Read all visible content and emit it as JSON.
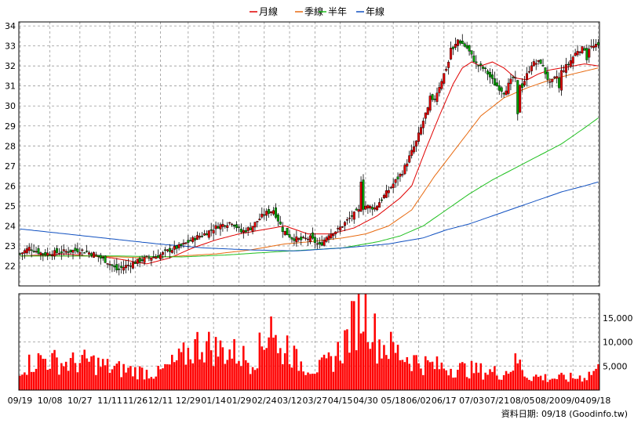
{
  "legend": {
    "ma20": {
      "label": "月線",
      "color": "#e00000"
    },
    "ma60": {
      "label": "季線",
      "color": "#e86a10"
    },
    "ma120": {
      "label": "半年",
      "color": "#20c020"
    },
    "ma240": {
      "label": "年線",
      "color": "#1050c0"
    }
  },
  "footer": "資料日期: 09/18 (Goodinfo.tw)",
  "colors": {
    "up": "#e00000",
    "down": "#00a000",
    "volume": "#ff0000",
    "grid": "#999999"
  },
  "chart_data": {
    "type": "candlestick-volume",
    "price_axis": {
      "min": 21,
      "max": 34.2,
      "ticks": [
        22,
        23,
        24,
        25,
        26,
        27,
        28,
        29,
        30,
        31,
        32,
        33,
        34
      ]
    },
    "volume_axis": {
      "min": 0,
      "max": 20000,
      "ticks": [
        {
          "v": 5000,
          "label": "5,000"
        },
        {
          "v": 10000,
          "label": "10,000"
        },
        {
          "v": 15000,
          "label": "15,000"
        }
      ]
    },
    "x_ticks": [
      {
        "i": 0,
        "label": "09/19"
      },
      {
        "i": 13,
        "label": "10/08"
      },
      {
        "i": 26,
        "label": "10/27"
      },
      {
        "i": 39,
        "label": "11/11"
      },
      {
        "i": 50,
        "label": "11/26"
      },
      {
        "i": 61,
        "label": "12/11"
      },
      {
        "i": 73,
        "label": "12/29"
      },
      {
        "i": 84,
        "label": "01/14"
      },
      {
        "i": 95,
        "label": "01/29"
      },
      {
        "i": 106,
        "label": "02/24"
      },
      {
        "i": 117,
        "label": "03/12"
      },
      {
        "i": 128,
        "label": "03/27"
      },
      {
        "i": 139,
        "label": "04/15"
      },
      {
        "i": 150,
        "label": "04/30"
      },
      {
        "i": 162,
        "label": "05/18"
      },
      {
        "i": 173,
        "label": "06/02"
      },
      {
        "i": 184,
        "label": "06/17"
      },
      {
        "i": 196,
        "label": "07/03"
      },
      {
        "i": 207,
        "label": "07/21"
      },
      {
        "i": 218,
        "label": "08/05"
      },
      {
        "i": 229,
        "label": "08/20"
      },
      {
        "i": 240,
        "label": "09/04"
      },
      {
        "i": 251,
        "label": "09/18"
      }
    ],
    "n": 252,
    "close_keypoints": [
      [
        0,
        22.6
      ],
      [
        4,
        22.9
      ],
      [
        10,
        22.6
      ],
      [
        18,
        22.7
      ],
      [
        26,
        22.8
      ],
      [
        32,
        22.6
      ],
      [
        38,
        22.2
      ],
      [
        42,
        21.8
      ],
      [
        48,
        22.1
      ],
      [
        55,
        22.4
      ],
      [
        60,
        22.5
      ],
      [
        65,
        22.8
      ],
      [
        70,
        23.0
      ],
      [
        76,
        23.4
      ],
      [
        80,
        23.6
      ],
      [
        86,
        24.0
      ],
      [
        92,
        24.2
      ],
      [
        96,
        23.7
      ],
      [
        100,
        23.9
      ],
      [
        106,
        24.6
      ],
      [
        110,
        24.8
      ],
      [
        114,
        23.8
      ],
      [
        118,
        23.4
      ],
      [
        122,
        23.3
      ],
      [
        126,
        23.4
      ],
      [
        130,
        23.0
      ],
      [
        134,
        23.6
      ],
      [
        138,
        23.8
      ],
      [
        144,
        24.5
      ],
      [
        150,
        25.0
      ],
      [
        154,
        24.9
      ],
      [
        160,
        25.8
      ],
      [
        166,
        26.7
      ],
      [
        172,
        28.2
      ],
      [
        176,
        29.6
      ],
      [
        180,
        30.4
      ],
      [
        184,
        31.6
      ],
      [
        188,
        32.8
      ],
      [
        190,
        33.3
      ],
      [
        194,
        32.9
      ],
      [
        198,
        32.1
      ],
      [
        202,
        31.8
      ],
      [
        206,
        31.1
      ],
      [
        210,
        30.7
      ],
      [
        214,
        31.4
      ],
      [
        218,
        31.0
      ],
      [
        222,
        32.1
      ],
      [
        226,
        32.2
      ],
      [
        230,
        31.1
      ],
      [
        234,
        31.6
      ],
      [
        238,
        32.1
      ],
      [
        242,
        32.8
      ],
      [
        246,
        32.9
      ],
      [
        251,
        33.0
      ]
    ],
    "dips": [
      [
        148,
        26.2
      ],
      [
        178,
        30.5
      ],
      [
        187,
        32.9
      ],
      [
        216,
        29.6
      ],
      [
        234,
        30.9
      ],
      [
        246,
        32.3
      ]
    ],
    "ma_keypoints": {
      "ma20": [
        [
          0,
          22.5
        ],
        [
          20,
          22.6
        ],
        [
          40,
          22.4
        ],
        [
          55,
          22.1
        ],
        [
          65,
          22.4
        ],
        [
          75,
          22.9
        ],
        [
          85,
          23.3
        ],
        [
          95,
          23.6
        ],
        [
          105,
          23.8
        ],
        [
          115,
          24.0
        ],
        [
          125,
          23.6
        ],
        [
          135,
          23.6
        ],
        [
          145,
          23.9
        ],
        [
          155,
          24.5
        ],
        [
          165,
          25.4
        ],
        [
          170,
          26.0
        ],
        [
          176,
          27.8
        ],
        [
          182,
          29.5
        ],
        [
          188,
          31.1
        ],
        [
          192,
          31.9
        ],
        [
          196,
          32.2
        ],
        [
          200,
          32.0
        ],
        [
          205,
          32.2
        ],
        [
          210,
          31.9
        ],
        [
          215,
          31.4
        ],
        [
          220,
          31.3
        ],
        [
          225,
          31.6
        ],
        [
          230,
          31.8
        ],
        [
          235,
          31.9
        ],
        [
          240,
          32.0
        ],
        [
          245,
          32.1
        ],
        [
          251,
          32.0
        ]
      ],
      "ma60": [
        [
          0,
          22.5
        ],
        [
          30,
          22.5
        ],
        [
          55,
          22.4
        ],
        [
          70,
          22.5
        ],
        [
          85,
          22.6
        ],
        [
          100,
          22.8
        ],
        [
          115,
          23.1
        ],
        [
          125,
          23.2
        ],
        [
          140,
          23.4
        ],
        [
          150,
          23.6
        ],
        [
          160,
          24.0
        ],
        [
          170,
          24.8
        ],
        [
          180,
          26.5
        ],
        [
          190,
          28.0
        ],
        [
          200,
          29.5
        ],
        [
          210,
          30.4
        ],
        [
          220,
          30.9
        ],
        [
          230,
          31.3
        ],
        [
          240,
          31.6
        ],
        [
          251,
          31.9
        ]
      ],
      "ma120": [
        [
          0,
          22.5
        ],
        [
          40,
          22.5
        ],
        [
          70,
          22.45
        ],
        [
          90,
          22.55
        ],
        [
          110,
          22.7
        ],
        [
          125,
          22.8
        ],
        [
          140,
          22.9
        ],
        [
          155,
          23.2
        ],
        [
          165,
          23.5
        ],
        [
          175,
          24.0
        ],
        [
          185,
          24.8
        ],
        [
          195,
          25.6
        ],
        [
          205,
          26.3
        ],
        [
          215,
          26.9
        ],
        [
          225,
          27.5
        ],
        [
          235,
          28.1
        ],
        [
          245,
          28.9
        ],
        [
          251,
          29.4
        ]
      ],
      "ma240": [
        [
          0,
          23.85
        ],
        [
          20,
          23.6
        ],
        [
          40,
          23.35
        ],
        [
          60,
          23.1
        ],
        [
          80,
          22.9
        ],
        [
          100,
          22.8
        ],
        [
          120,
          22.75
        ],
        [
          140,
          22.9
        ],
        [
          160,
          23.1
        ],
        [
          175,
          23.4
        ],
        [
          185,
          23.8
        ],
        [
          195,
          24.1
        ],
        [
          205,
          24.5
        ],
        [
          215,
          24.9
        ],
        [
          225,
          25.3
        ],
        [
          235,
          25.7
        ],
        [
          245,
          26.0
        ],
        [
          251,
          26.2
        ]
      ]
    },
    "volume_keypoints": [
      [
        0,
        4800
      ],
      [
        10,
        6500
      ],
      [
        20,
        5500
      ],
      [
        30,
        6000
      ],
      [
        40,
        4500
      ],
      [
        50,
        4000
      ],
      [
        60,
        3500
      ],
      [
        70,
        6500
      ],
      [
        78,
        9800
      ],
      [
        85,
        8500
      ],
      [
        95,
        7500
      ],
      [
        100,
        6000
      ],
      [
        106,
        9500
      ],
      [
        109,
        16500
      ],
      [
        112,
        7000
      ],
      [
        116,
        9500
      ],
      [
        120,
        6000
      ],
      [
        125,
        5000
      ],
      [
        130,
        4500
      ],
      [
        135,
        6000
      ],
      [
        140,
        9000
      ],
      [
        146,
        15000
      ],
      [
        150,
        18000
      ],
      [
        155,
        10000
      ],
      [
        160,
        9000
      ],
      [
        165,
        7500
      ],
      [
        170,
        6500
      ],
      [
        175,
        5500
      ],
      [
        180,
        5000
      ],
      [
        190,
        4500
      ],
      [
        200,
        4000
      ],
      [
        210,
        3500
      ],
      [
        216,
        6000
      ],
      [
        220,
        3000
      ],
      [
        230,
        2500
      ],
      [
        240,
        2500
      ],
      [
        246,
        3000
      ],
      [
        250,
        4200
      ]
    ]
  }
}
